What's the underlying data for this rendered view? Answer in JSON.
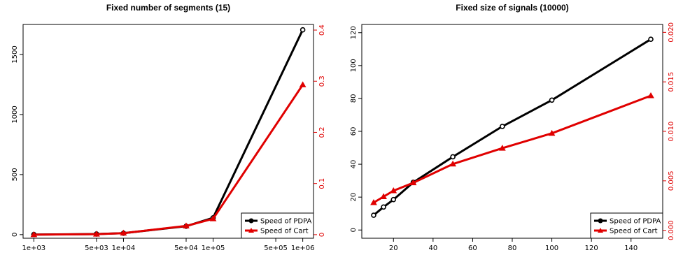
{
  "chart_data": [
    {
      "type": "line",
      "title": "Fixed number of segments (15)",
      "x_scale": "log",
      "x": [
        1000,
        5000,
        10000,
        50000,
        100000,
        1000000
      ],
      "x_ticks": [
        1000,
        5000,
        10000,
        50000,
        100000,
        500000,
        1000000
      ],
      "x_tick_labels": [
        "1e+03",
        "5e+03",
        "1e+04",
        "5e+04",
        "1e+05",
        "5e+05",
        "1e+06"
      ],
      "ylim_left": [
        -30,
        1750
      ],
      "yticks_left": [
        0,
        500,
        1000,
        1500
      ],
      "ylim_right": [
        -0.007,
        0.411
      ],
      "yticks_right": [
        0,
        0.1,
        0.2,
        0.3,
        0.4
      ],
      "series": [
        {
          "name": "Speed of PDPA",
          "axis": "left",
          "color": "#000000",
          "marker": "circle",
          "values": [
            1,
            5,
            12,
            70,
            140,
            1705
          ]
        },
        {
          "name": "Speed of Cart",
          "axis": "right",
          "color": "#e00000",
          "marker": "triangle",
          "values": [
            0,
            0.001,
            0.003,
            0.017,
            0.031,
            0.293
          ]
        }
      ],
      "legend": {
        "position": "bottom-right",
        "entries": [
          "Speed of PDPA",
          "Speed of Cart"
        ]
      }
    },
    {
      "type": "line",
      "title": "Fixed size of signals (10000)",
      "x_scale": "linear",
      "xlim": [
        4,
        156
      ],
      "x_ticks": [
        20,
        40,
        60,
        80,
        100,
        120,
        140
      ],
      "x_tick_labels": [
        "20",
        "40",
        "60",
        "80",
        "100",
        "120",
        "140"
      ],
      "ylim_left": [
        -5,
        125
      ],
      "yticks_left": [
        0,
        20,
        40,
        60,
        80,
        100,
        120
      ],
      "ylim_right": [
        -0.0008,
        0.0208
      ],
      "yticks_right": [
        0,
        0.005,
        0.01,
        0.015,
        0.02
      ],
      "yticks_right_labels": [
        "0.000",
        "0.005",
        "0.010",
        "0.015",
        "0.020"
      ],
      "series": [
        {
          "name": "Speed of PDPA",
          "axis": "left",
          "color": "#000000",
          "marker": "circle",
          "x": [
            10,
            15,
            20,
            30,
            50,
            75,
            100,
            150
          ],
          "values": [
            9,
            14,
            18.5,
            29,
            44.5,
            63,
            79,
            116
          ]
        },
        {
          "name": "Speed of Cart",
          "axis": "right",
          "color": "#e00000",
          "marker": "triangle",
          "x": [
            10,
            15,
            20,
            30,
            50,
            75,
            100,
            150
          ],
          "values": [
            0.0028,
            0.0034,
            0.004,
            0.0048,
            0.0067,
            0.0083,
            0.0098,
            0.0136
          ]
        }
      ],
      "legend": {
        "position": "bottom-right",
        "entries": [
          "Speed of PDPA",
          "Speed of Cart"
        ]
      }
    }
  ]
}
